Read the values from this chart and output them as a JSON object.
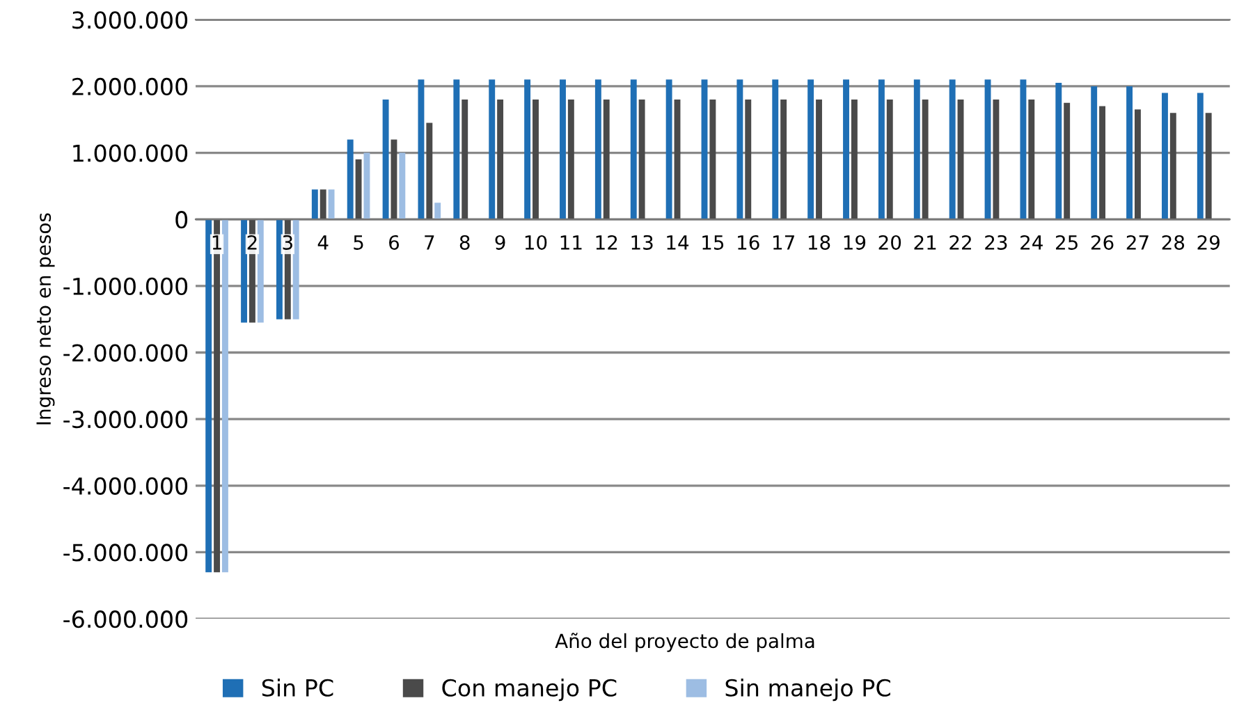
{
  "chart_data": {
    "type": "bar",
    "xlabel": "Año del proyecto de palma",
    "ylabel": "Ingreso neto en pesos",
    "categories": [
      "1",
      "2",
      "3",
      "4",
      "5",
      "6",
      "7",
      "8",
      "9",
      "10",
      "11",
      "12",
      "13",
      "14",
      "15",
      "16",
      "17",
      "18",
      "19",
      "20",
      "21",
      "22",
      "23",
      "24",
      "25",
      "26",
      "27",
      "28",
      "29"
    ],
    "series": [
      {
        "name": "Sin PC",
        "color": "#1f6fb5",
        "values": [
          -5300000,
          -1550000,
          -1500000,
          450000,
          1200000,
          1800000,
          2100000,
          2100000,
          2100000,
          2100000,
          2100000,
          2100000,
          2100000,
          2100000,
          2100000,
          2100000,
          2100000,
          2100000,
          2100000,
          2100000,
          2100000,
          2100000,
          2100000,
          2100000,
          2050000,
          2000000,
          2000000,
          1900000,
          1900000
        ]
      },
      {
        "name": "Con manejo PC",
        "color": "#4a4a4a",
        "values": [
          -5300000,
          -1550000,
          -1500000,
          450000,
          900000,
          1200000,
          1450000,
          1800000,
          1800000,
          1800000,
          1800000,
          1800000,
          1800000,
          1800000,
          1800000,
          1800000,
          1800000,
          1800000,
          1800000,
          1800000,
          1800000,
          1800000,
          1800000,
          1800000,
          1750000,
          1700000,
          1650000,
          1600000,
          1600000
        ]
      },
      {
        "name": "Sin manejo PC",
        "color": "#9dbde3",
        "values": [
          -5300000,
          -1550000,
          -1500000,
          450000,
          1000000,
          1000000,
          250000,
          0,
          0,
          0,
          0,
          0,
          0,
          0,
          0,
          0,
          0,
          0,
          0,
          0,
          0,
          0,
          0,
          0,
          0,
          0,
          0,
          0,
          0
        ]
      }
    ],
    "ylim": [
      -6000000,
      3000000
    ],
    "yticks": [
      {
        "value": -6000000,
        "label": "-6.000.000"
      },
      {
        "value": -5000000,
        "label": "-5.000.000"
      },
      {
        "value": -4000000,
        "label": "-4.000.000"
      },
      {
        "value": -3000000,
        "label": "-3.000.000"
      },
      {
        "value": -2000000,
        "label": "-2.000.000"
      },
      {
        "value": -1000000,
        "label": "-1.000.000"
      },
      0,
      {
        "value": 1000000,
        "label": "1.000.000"
      },
      {
        "value": 2000000,
        "label": "2.000.000"
      },
      {
        "value": 3000000,
        "label": "3.000.000"
      }
    ],
    "grid": "y",
    "legend": "bottom"
  }
}
